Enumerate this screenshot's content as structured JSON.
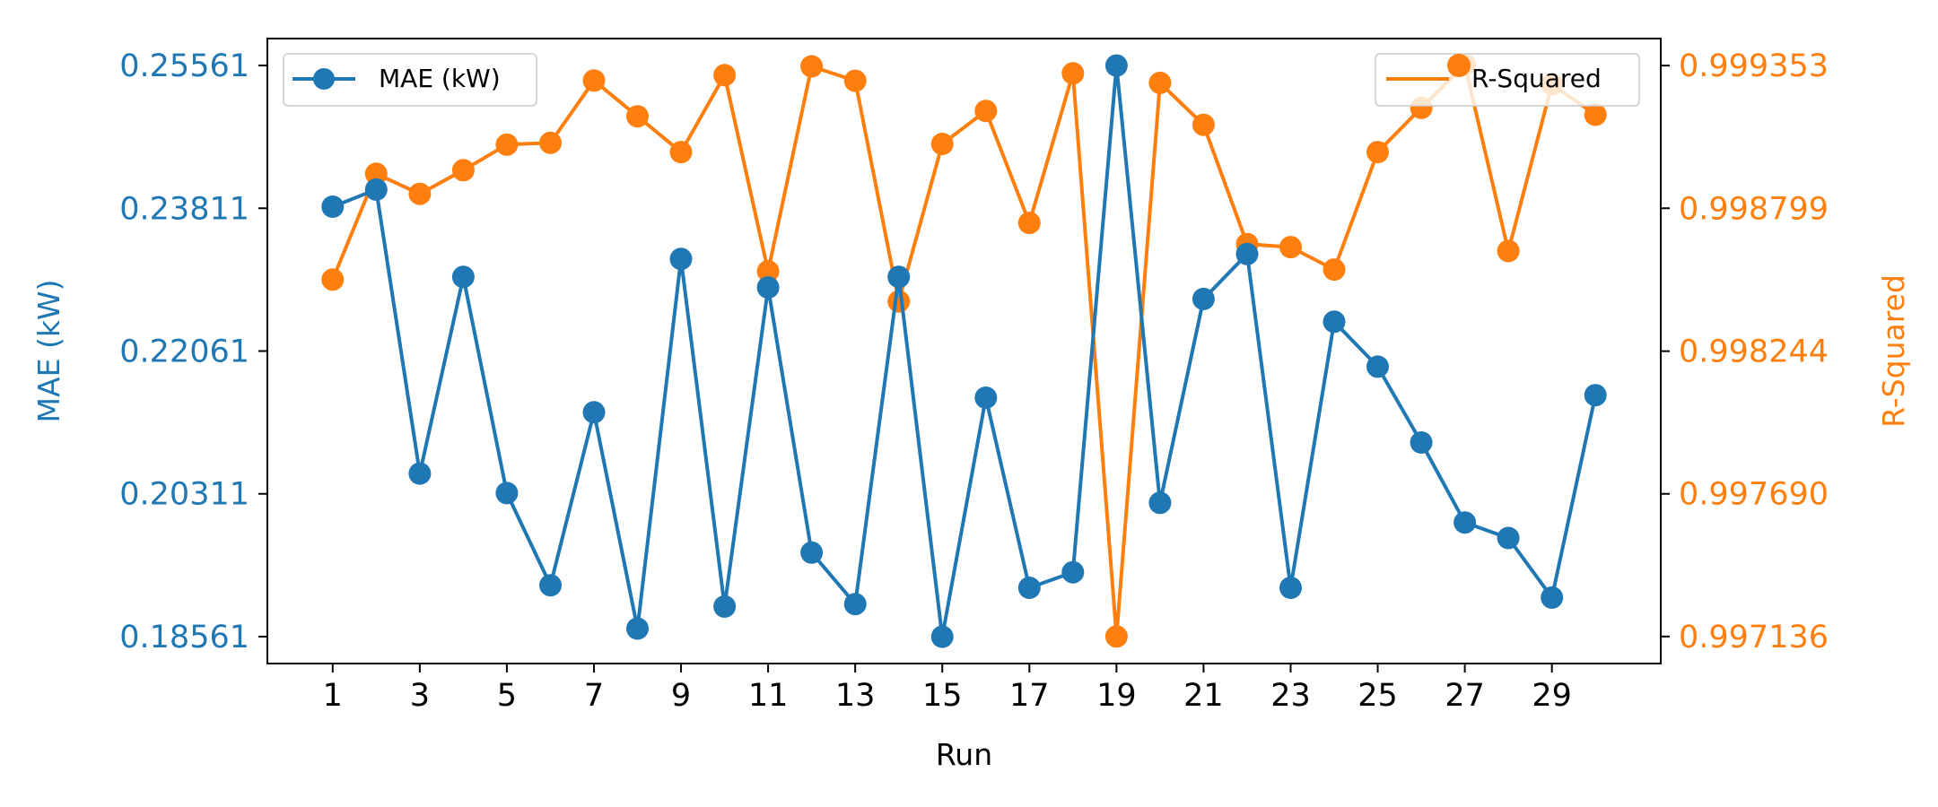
{
  "chart_data": {
    "type": "line",
    "xlabel": "Run",
    "x": [
      1,
      2,
      3,
      4,
      5,
      6,
      7,
      8,
      9,
      10,
      11,
      12,
      13,
      14,
      15,
      16,
      17,
      18,
      19,
      20,
      21,
      22,
      23,
      24,
      25,
      26,
      27,
      28,
      29,
      30
    ],
    "x_ticks": [
      "1",
      "3",
      "5",
      "7",
      "9",
      "11",
      "13",
      "15",
      "17",
      "19",
      "21",
      "23",
      "25",
      "27",
      "29"
    ],
    "x_range": [
      -0.5,
      31.5
    ],
    "grid": false,
    "series": [
      {
        "name": "MAE (kW)",
        "axis": "left",
        "color": "#1f77b4",
        "marker": "circle",
        "values": [
          0.2383,
          0.2404,
          0.2056,
          0.2297,
          0.2032,
          0.1919,
          0.2131,
          0.1866,
          0.2319,
          0.1893,
          0.2284,
          0.1959,
          0.1896,
          0.2297,
          0.1856,
          0.2149,
          0.1916,
          0.1935,
          0.2556,
          0.202,
          0.227,
          0.2325,
          0.1916,
          0.2242,
          0.2187,
          0.2094,
          0.1996,
          0.1977,
          0.1904,
          0.2152
        ]
      },
      {
        "name": "R-Squared",
        "axis": "right",
        "color": "#ff7f0e",
        "marker": "circle",
        "values": [
          0.998522,
          0.998933,
          0.998855,
          0.998947,
          0.999046,
          0.999053,
          0.999295,
          0.999156,
          0.999017,
          0.999316,
          0.998554,
          0.99935,
          0.999294,
          0.998437,
          0.999049,
          0.999177,
          0.998742,
          0.999323,
          0.997136,
          0.999286,
          0.999123,
          0.99866,
          0.998648,
          0.998561,
          0.999017,
          0.999189,
          0.999357,
          0.998633,
          0.99928,
          0.999162
        ]
      }
    ],
    "y_left": {
      "label": "MAE (kW)",
      "range": [
        0.18231,
        0.25891
      ],
      "ticks": [
        0.18561,
        0.20311,
        0.22061,
        0.23811,
        0.25561
      ],
      "tick_labels": [
        "0.18561",
        "0.20311",
        "0.22061",
        "0.23811",
        "0.25561"
      ],
      "color": "#1f77b4"
    },
    "y_right": {
      "label": "R-Squared",
      "range": [
        0.997031,
        0.999458
      ],
      "ticks": [
        0.997136,
        0.99769,
        0.998244,
        0.998799,
        0.999353
      ],
      "tick_labels": [
        "0.997136",
        "0.997690",
        "0.998244",
        "0.998799",
        "0.999353"
      ],
      "color": "#ff7f0e"
    },
    "legends": [
      {
        "series": "MAE (kW)",
        "placement": "upper-left"
      },
      {
        "series": "R-Squared",
        "placement": "upper-right"
      }
    ]
  }
}
